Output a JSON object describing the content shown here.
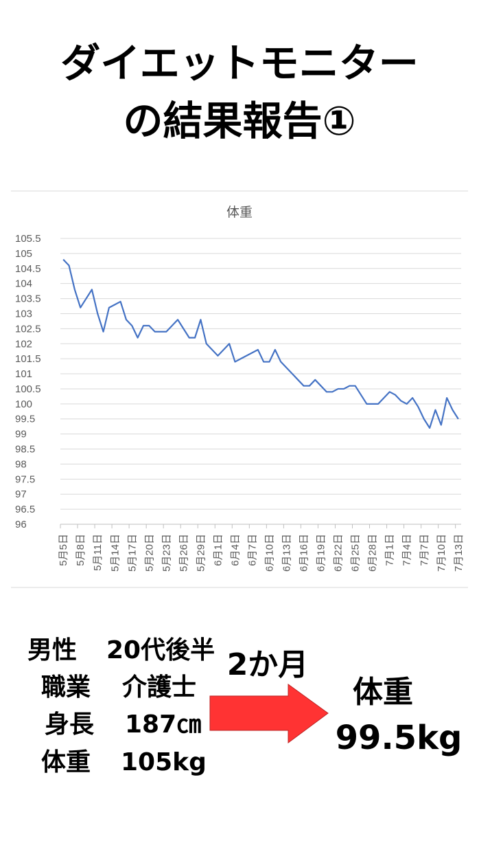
{
  "header": {
    "title_line1": "ダイエットモニター",
    "title_line2": "の結果報告①"
  },
  "chart_data": {
    "type": "line",
    "title": "体重",
    "categories": [
      "5月5日",
      null,
      null,
      "5月8日",
      null,
      null,
      "5月11日",
      null,
      null,
      "5月14日",
      null,
      null,
      "5月17日",
      null,
      null,
      "5月20日",
      null,
      null,
      "5月23日",
      null,
      null,
      "5月26日",
      null,
      null,
      "5月29日",
      null,
      null,
      "6月1日",
      null,
      null,
      "6月4日",
      null,
      null,
      "6月7日",
      null,
      null,
      "6月10日",
      null,
      null,
      "6月13日",
      null,
      null,
      "6月16日",
      null,
      null,
      "6月19日",
      null,
      null,
      "6月22日",
      null,
      null,
      "6月25日",
      null,
      null,
      "6月28日",
      null,
      null,
      "7月1日",
      null,
      null,
      "7月4日",
      null,
      null,
      "7月7日",
      null,
      null,
      "7月10日",
      null,
      null,
      "7月13日"
    ],
    "values": [
      104.8,
      104.6,
      103.8,
      103.2,
      103.5,
      103.8,
      103.0,
      102.4,
      103.2,
      103.3,
      103.4,
      102.8,
      102.6,
      102.2,
      102.6,
      102.6,
      102.4,
      102.4,
      102.4,
      102.6,
      102.8,
      102.5,
      102.2,
      102.2,
      102.8,
      102.0,
      101.8,
      101.6,
      101.8,
      102.0,
      101.4,
      101.5,
      101.6,
      101.7,
      101.8,
      101.4,
      101.4,
      101.8,
      101.4,
      101.2,
      101.0,
      100.8,
      100.6,
      100.6,
      100.8,
      100.6,
      100.4,
      100.4,
      100.5,
      100.5,
      100.6,
      100.6,
      100.3,
      100.0,
      100.0,
      100.0,
      100.2,
      100.4,
      100.3,
      100.1,
      100.0,
      100.2,
      99.9,
      99.5,
      99.2,
      99.8,
      99.3,
      100.2,
      99.8,
      99.5
    ],
    "color": "#4472c4",
    "ylim": [
      96,
      105.5
    ],
    "yticks": [
      96,
      96.5,
      97,
      97.5,
      98,
      98.5,
      99,
      99.5,
      100,
      100.5,
      101,
      101.5,
      102,
      102.5,
      103,
      103.5,
      104,
      104.5,
      105,
      105.5
    ],
    "grid": true
  },
  "profile": [
    {
      "label": "男性",
      "value": "20代後半"
    },
    {
      "label": "職業",
      "value": "介護士"
    },
    {
      "label": "身長",
      "value": "187㎝"
    },
    {
      "label": "体重",
      "value": "105kg"
    }
  ],
  "result": {
    "period": "2か月",
    "label": "体重",
    "value": "99.5kg"
  }
}
